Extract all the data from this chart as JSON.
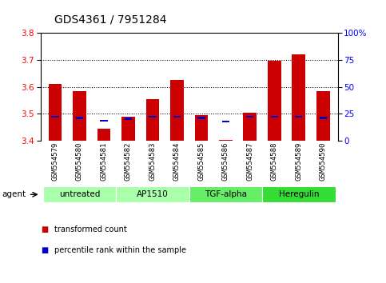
{
  "title": "GDS4361 / 7951284",
  "samples": [
    "GSM554579",
    "GSM554580",
    "GSM554581",
    "GSM554582",
    "GSM554583",
    "GSM554584",
    "GSM554585",
    "GSM554586",
    "GSM554587",
    "GSM554588",
    "GSM554589",
    "GSM554590"
  ],
  "transformed_count": [
    3.61,
    3.585,
    3.445,
    3.49,
    3.555,
    3.625,
    3.495,
    3.405,
    3.505,
    3.695,
    3.72,
    3.585
  ],
  "percentile_rank": [
    3.49,
    3.485,
    3.475,
    3.482,
    3.49,
    3.49,
    3.485,
    3.472,
    3.49,
    3.49,
    3.49,
    3.485
  ],
  "ymin": 3.4,
  "ymax": 3.8,
  "yticks": [
    3.4,
    3.5,
    3.6,
    3.7,
    3.8
  ],
  "y2ticks_vals": [
    3.4,
    3.5,
    3.6,
    3.7,
    3.8
  ],
  "y2ticks_labels": [
    "0",
    "25",
    "50",
    "75",
    "100%"
  ],
  "bar_color": "#cc0000",
  "percentile_color": "#0000cc",
  "agent_groups": [
    {
      "label": "untreated",
      "start": 0,
      "end": 2,
      "color": "#aaffaa"
    },
    {
      "label": "AP1510",
      "start": 3,
      "end": 5,
      "color": "#aaffaa"
    },
    {
      "label": "TGF-alpha",
      "start": 6,
      "end": 8,
      "color": "#66ee66"
    },
    {
      "label": "Heregulin",
      "start": 9,
      "end": 11,
      "color": "#33dd33"
    }
  ],
  "xlabel_agent": "agent",
  "legend_items": [
    {
      "label": "transformed count",
      "color": "#cc0000"
    },
    {
      "label": "percentile rank within the sample",
      "color": "#0000cc"
    }
  ],
  "bar_width": 0.55,
  "background_color": "#ffffff",
  "tick_area_bg": "#c8c8c8",
  "title_fontsize": 10,
  "tick_fontsize": 7.5,
  "label_fontsize": 7.5
}
